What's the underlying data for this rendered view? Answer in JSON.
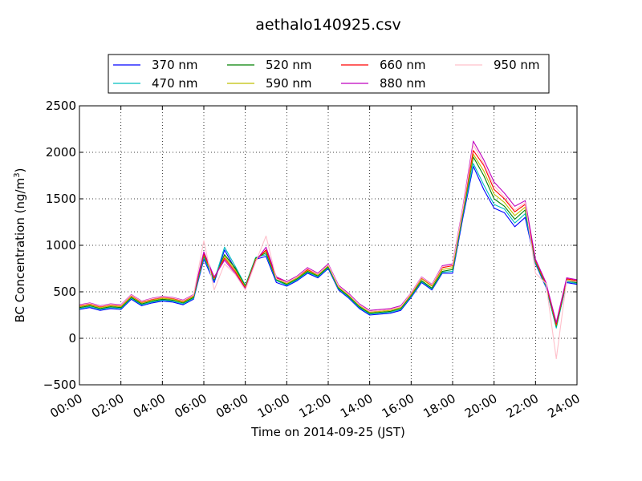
{
  "chart_data": {
    "type": "line",
    "title": "aethalo140925.csv",
    "xlabel": "Time on 2014-09-25 (JST)",
    "ylabel": "BC Concentration (ng/m",
    "ylabel_superscript": "3",
    "ylabel_suffix": ")",
    "xlim": [
      "00:00",
      "24:00"
    ],
    "ylim": [
      -500,
      2500
    ],
    "x_ticks": [
      "00:00",
      "02:00",
      "04:00",
      "06:00",
      "08:00",
      "10:00",
      "12:00",
      "14:00",
      "16:00",
      "18:00",
      "20:00",
      "22:00",
      "24:00"
    ],
    "y_ticks": [
      "−500",
      "0",
      "500",
      "1000",
      "1500",
      "2000",
      "2500"
    ],
    "grid": true,
    "legend_position": "top-center",
    "x": [
      "00:00",
      "00:30",
      "01:00",
      "01:30",
      "02:00",
      "02:30",
      "03:00",
      "03:30",
      "04:00",
      "04:30",
      "05:00",
      "05:30",
      "06:00",
      "06:30",
      "07:00",
      "07:30",
      "08:00",
      "08:30",
      "09:00",
      "09:30",
      "10:00",
      "10:30",
      "11:00",
      "11:30",
      "12:00",
      "12:30",
      "13:00",
      "13:30",
      "14:00",
      "14:30",
      "15:00",
      "15:30",
      "16:00",
      "16:30",
      "17:00",
      "17:30",
      "18:00",
      "18:30",
      "19:00",
      "19:30",
      "20:00",
      "20:30",
      "21:00",
      "21:30",
      "22:00",
      "22:30",
      "23:00",
      "23:30",
      "24:00"
    ],
    "series": [
      {
        "name": "370 nm",
        "color": "#0000ff",
        "values": [
          310,
          330,
          300,
          320,
          310,
          420,
          350,
          380,
          400,
          390,
          360,
          420,
          850,
          600,
          950,
          750,
          550,
          850,
          880,
          600,
          560,
          620,
          700,
          650,
          750,
          520,
          430,
          320,
          250,
          260,
          270,
          300,
          440,
          600,
          520,
          700,
          700,
          1300,
          1850,
          1600,
          1400,
          1350,
          1200,
          1300,
          800,
          550,
          120,
          600,
          580
        ]
      },
      {
        "name": "470 nm",
        "color": "#00bfbf",
        "values": [
          320,
          340,
          310,
          330,
          320,
          430,
          360,
          390,
          410,
          400,
          370,
          430,
          870,
          620,
          980,
          780,
          570,
          870,
          900,
          620,
          570,
          630,
          710,
          660,
          760,
          530,
          440,
          330,
          260,
          270,
          280,
          310,
          450,
          610,
          530,
          710,
          720,
          1330,
          1880,
          1650,
          1440,
          1390,
          1240,
          1340,
          810,
          560,
          110,
          610,
          590
        ]
      },
      {
        "name": "520 nm",
        "color": "#008000",
        "values": [
          330,
          350,
          320,
          340,
          330,
          440,
          370,
          400,
          420,
          410,
          380,
          440,
          890,
          630,
          900,
          760,
          560,
          860,
          920,
          630,
          580,
          640,
          720,
          670,
          770,
          540,
          450,
          340,
          270,
          280,
          290,
          320,
          460,
          620,
          540,
          720,
          740,
          1350,
          1950,
          1750,
          1500,
          1420,
          1280,
          1380,
          820,
          570,
          130,
          620,
          600
        ]
      },
      {
        "name": "590 nm",
        "color": "#bfbf00",
        "values": [
          340,
          360,
          330,
          350,
          340,
          450,
          380,
          410,
          430,
          420,
          390,
          450,
          900,
          640,
          880,
          740,
          550,
          850,
          940,
          640,
          590,
          650,
          730,
          680,
          780,
          550,
          460,
          350,
          280,
          290,
          300,
          330,
          470,
          640,
          560,
          740,
          760,
          1370,
          1980,
          1800,
          1550,
          1460,
          1320,
          1410,
          830,
          580,
          140,
          630,
          610
        ]
      },
      {
        "name": "660 nm",
        "color": "#ff0000",
        "values": [
          350,
          370,
          340,
          360,
          350,
          460,
          390,
          420,
          440,
          430,
          400,
          460,
          910,
          650,
          860,
          720,
          540,
          840,
          950,
          650,
          600,
          660,
          740,
          690,
          790,
          560,
          470,
          360,
          290,
          300,
          310,
          340,
          480,
          650,
          570,
          760,
          780,
          1390,
          2020,
          1860,
          1600,
          1500,
          1360,
          1440,
          840,
          590,
          150,
          640,
          620
        ]
      },
      {
        "name": "880 nm",
        "color": "#bf00bf",
        "values": [
          360,
          380,
          350,
          370,
          360,
          470,
          400,
          430,
          450,
          440,
          410,
          470,
          930,
          660,
          840,
          700,
          530,
          830,
          980,
          660,
          610,
          670,
          760,
          700,
          800,
          570,
          480,
          370,
          300,
          310,
          320,
          350,
          490,
          660,
          580,
          780,
          800,
          1420,
          2120,
          1920,
          1680,
          1560,
          1420,
          1480,
          850,
          600,
          170,
          650,
          630
        ]
      },
      {
        "name": "950 nm",
        "color": "#ffc0cb",
        "values": [
          355,
          375,
          345,
          365,
          355,
          465,
          395,
          425,
          445,
          435,
          405,
          465,
          1050,
          520,
          800,
          690,
          520,
          820,
          1100,
          640,
          600,
          660,
          750,
          690,
          790,
          560,
          470,
          360,
          290,
          300,
          310,
          340,
          485,
          655,
          575,
          770,
          790,
          1400,
          2080,
          1880,
          1640,
          1520,
          1380,
          1460,
          700,
          590,
          -220,
          620,
          610
        ]
      }
    ]
  }
}
